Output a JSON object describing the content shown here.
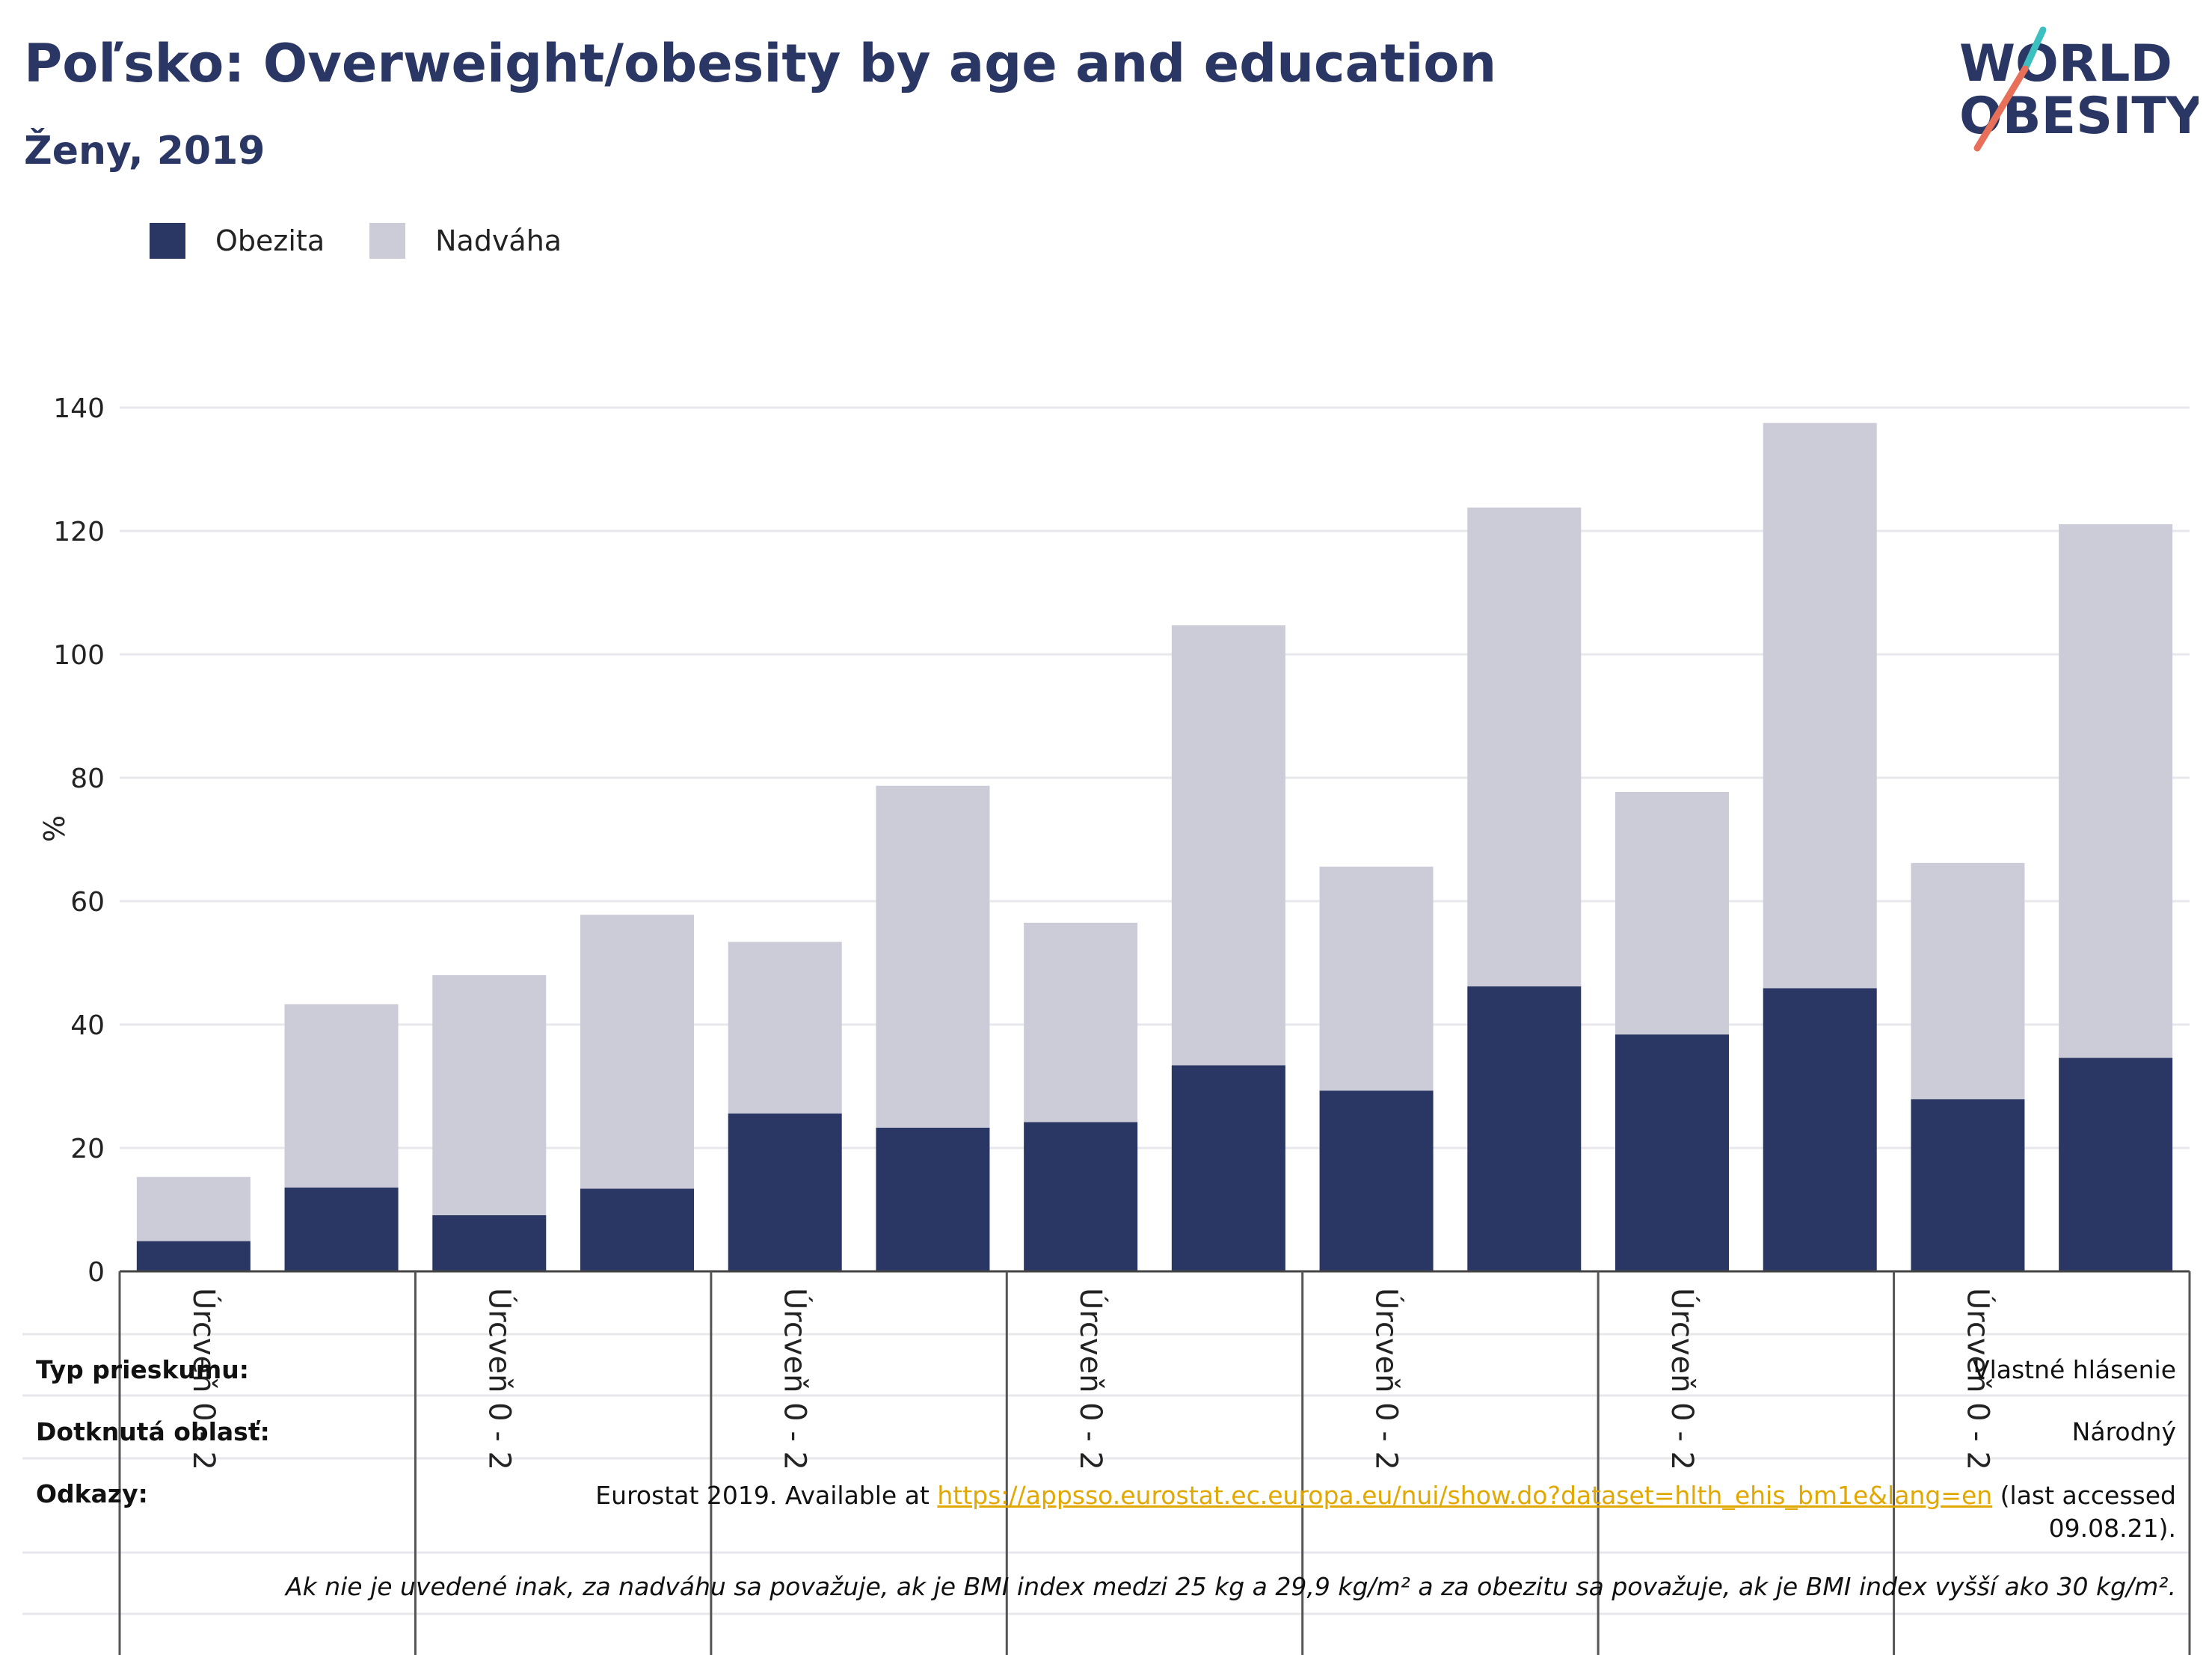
{
  "header": {
    "title": "Poľsko: Overweight/obesity by age and education",
    "subtitle": "Ženy, 2019"
  },
  "logo": {
    "line1": "WORLD",
    "line2": "OBESITY"
  },
  "colors": {
    "obesity": "#2a3664",
    "overweight": "#cbccd7",
    "title": "#2a3664",
    "link": "#e0a800",
    "logo_teal": "#3bbfbf",
    "logo_coral": "#e8705a"
  },
  "chart_data": {
    "type": "bar",
    "stacked": true,
    "ylabel": "%",
    "ylim": [
      0,
      140
    ],
    "yticks": [
      0,
      20,
      40,
      60,
      80,
      100,
      120,
      140
    ],
    "grid": true,
    "legend_position": "top-left",
    "categories": [
      "",
      "",
      "",
      "",
      "",
      "",
      "",
      "",
      "",
      "",
      "",
      "",
      "",
      ""
    ],
    "group_labels": [
      "Úrcveň 0 - 2",
      "Úrcveň 0 - 2",
      "Úrcveň 0 - 2",
      "Úrcveň 0 - 2",
      "Úrcveň 0 - 2",
      "Úrcveň 0 - 2",
      "Úrcveň 0 - 2"
    ],
    "series": [
      {
        "name": "Obezita",
        "values": [
          4.9,
          13.6,
          9.1,
          13.4,
          25.6,
          23.3,
          24.2,
          33.4,
          29.3,
          46.2,
          38.4,
          45.9,
          27.9,
          34.6
        ]
      },
      {
        "name": "Nadváha",
        "values": [
          10.4,
          29.7,
          38.9,
          44.4,
          27.8,
          55.4,
          32.3,
          71.3,
          36.3,
          77.6,
          39.3,
          91.6,
          38.3,
          86.5
        ]
      }
    ]
  },
  "notes": {
    "survey_type_label": "Typ prieskumu:",
    "survey_type_value": "Vlastné hlásenie",
    "area_label": "Dotknutá oblasť:",
    "area_value": "Národný",
    "references_label": "Odkazy:",
    "references_prefix": "Eurostat 2019. Available at ",
    "references_link": "https://appsso.eurostat.ec.europa.eu/nui/show.do?dataset=hlth_ehis_bm1e&lang=en",
    "references_suffix": " (last accessed 09.08.21).",
    "definition": "Ak nie je uvedené inak, za nadváhu sa považuje, ak je BMI index medzi 25 kg a 29,9 kg/m² a za obezitu sa považuje, ak je BMI index vyšší ako 30 kg/m²."
  }
}
